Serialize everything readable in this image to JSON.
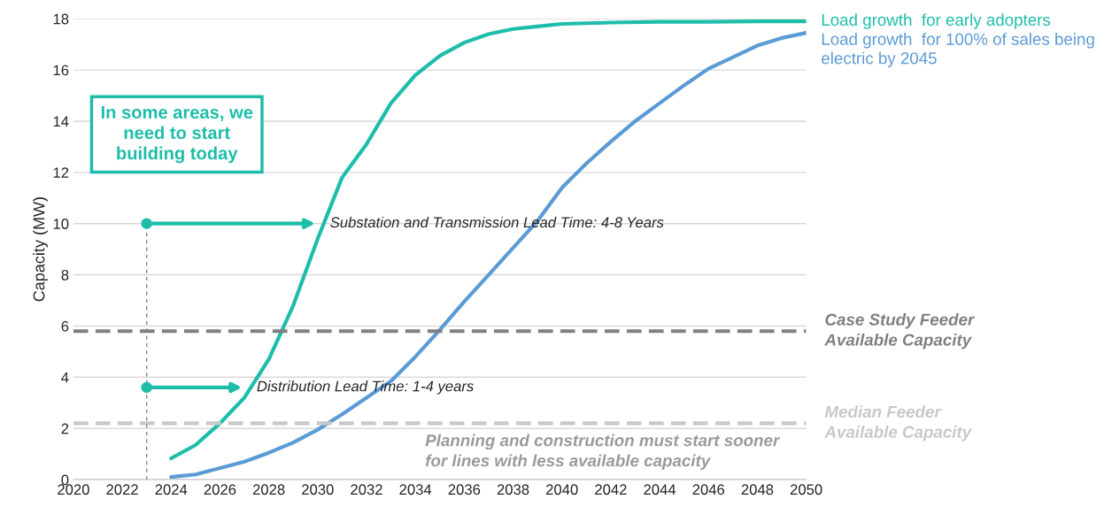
{
  "chart_data": {
    "type": "line",
    "ylabel": "Capacity (MW)",
    "xlim": [
      2020,
      2050
    ],
    "xticks": [
      2020,
      2022,
      2024,
      2026,
      2028,
      2030,
      2032,
      2034,
      2036,
      2038,
      2040,
      2042,
      2044,
      2046,
      2048,
      2050
    ],
    "ylim": [
      0,
      18
    ],
    "yticks": [
      0,
      2,
      4,
      6,
      8,
      10,
      12,
      14,
      16,
      18
    ],
    "grid": "y",
    "legend": false,
    "marker": "none",
    "line_style": "solid",
    "series": [
      {
        "name": "Load growth  for early adopters",
        "color": "#1dbdaa",
        "x": [
          2024,
          2025,
          2026,
          2027,
          2028,
          2029,
          2030,
          2031,
          2032,
          2033,
          2034,
          2035,
          2036,
          2037,
          2038,
          2039,
          2040,
          2042,
          2044,
          2046,
          2048,
          2050
        ],
        "values": [
          0.83,
          1.35,
          2.2,
          3.2,
          4.7,
          6.8,
          9.4,
          11.8,
          13.1,
          14.7,
          15.8,
          16.55,
          17.07,
          17.4,
          17.6,
          17.7,
          17.8,
          17.85,
          17.88,
          17.88,
          17.9,
          17.9
        ]
      },
      {
        "name": "Load growth  for 100% of sales being electric by 2045",
        "color": "#5b9bd5",
        "x": [
          2024,
          2025,
          2026,
          2027,
          2028,
          2029,
          2030,
          2031,
          2032,
          2033,
          2034,
          2035,
          2036,
          2037,
          2038,
          2039,
          2040,
          2041,
          2042,
          2043,
          2044,
          2045,
          2046,
          2047,
          2048,
          2049,
          2050
        ],
        "values": [
          0.1,
          0.2,
          0.45,
          0.7,
          1.05,
          1.45,
          1.95,
          2.55,
          3.2,
          3.85,
          4.8,
          5.85,
          6.95,
          8.0,
          9.05,
          10.1,
          11.4,
          12.35,
          13.2,
          14.0,
          14.7,
          15.4,
          16.05,
          16.5,
          16.95,
          17.25,
          17.45
        ]
      }
    ],
    "ref_lines": [
      {
        "axis": "y",
        "value": 5.8,
        "label": "Case Study Feeder Available Capacity",
        "color": "#808080",
        "line_style": "dashed"
      },
      {
        "axis": "y",
        "value": 2.2,
        "label": "Median Feeder Available Capacity",
        "color": "#c8c8c8",
        "line_style": "dashed"
      },
      {
        "axis": "x",
        "value": 2023,
        "color": "#808080",
        "line_style": "dashed"
      }
    ],
    "annotations": [
      "In some areas, we need to start building today",
      {
        "text": "Substation and Transmission Lead Time: 4-8 Years",
        "x": 2030,
        "y": 10
      },
      {
        "text": "Distribution Lead Time: 1-4 years",
        "x": 2027,
        "y": 3.6
      },
      "Planning and construction must start sooner for lines with less available capacity"
    ]
  }
}
